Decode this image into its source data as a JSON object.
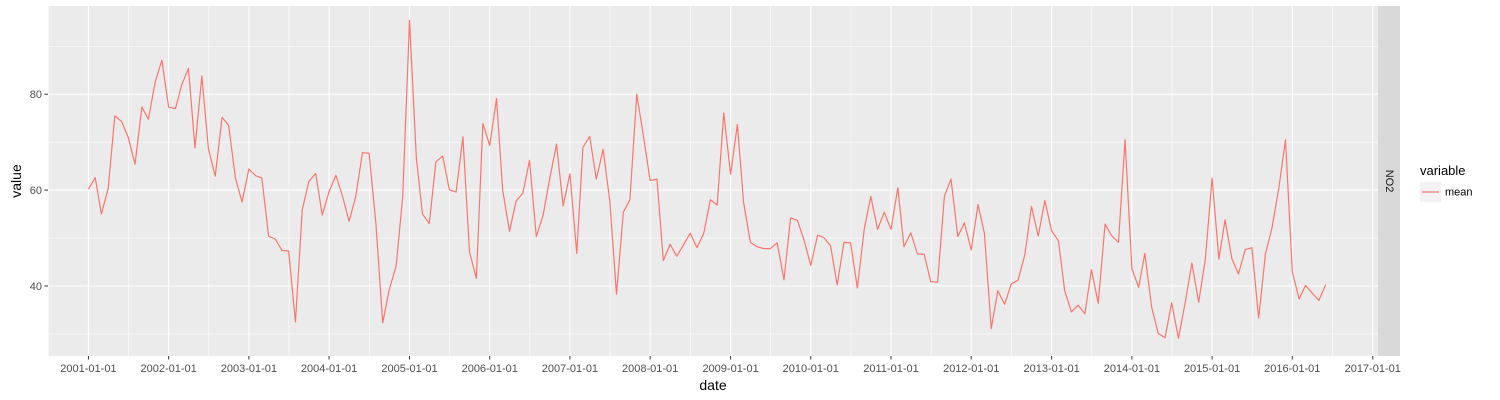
{
  "chart_data": {
    "type": "line",
    "xlabel": "date",
    "ylabel": "value",
    "facet_label": "NO2",
    "legend_title": "variable",
    "legend_position": "right",
    "grid": true,
    "xlim": [
      "2000-07-01",
      "2017-01-25"
    ],
    "ylim": [
      25.4,
      98.4
    ],
    "x_ticks": [
      "2001-01-01",
      "2002-01-01",
      "2003-01-01",
      "2004-01-01",
      "2005-01-01",
      "2006-01-01",
      "2007-01-01",
      "2008-01-01",
      "2009-01-01",
      "2010-01-01",
      "2011-01-01",
      "2012-01-01",
      "2013-01-01",
      "2014-01-01",
      "2015-01-01",
      "2016-01-01",
      "2017-01-01"
    ],
    "y_ticks": [
      40,
      60,
      80
    ],
    "series": [
      {
        "name": "mean",
        "color": "#F8766D",
        "start": "2001-01-01",
        "interval": "month",
        "values": [
          60.2,
          62.6,
          55.0,
          60.4,
          75.5,
          74.3,
          71.0,
          65.4,
          77.3,
          74.8,
          82.6,
          87.1,
          77.3,
          77.0,
          81.9,
          85.4,
          68.8,
          83.8,
          68.6,
          62.9,
          75.2,
          73.5,
          62.5,
          57.5,
          64.4,
          63.0,
          62.5,
          50.4,
          49.8,
          47.4,
          47.3,
          32.5,
          55.9,
          61.8,
          63.5,
          54.8,
          59.7,
          63.1,
          58.9,
          53.5,
          58.6,
          67.8,
          67.7,
          53.1,
          32.3,
          39.3,
          44.1,
          58.6,
          95.4,
          66.8,
          55.0,
          53.0,
          65.9,
          67.1,
          60.1,
          59.6,
          71.1,
          47.1,
          41.6,
          73.9,
          69.3,
          79.1,
          60.0,
          51.4,
          57.7,
          59.4,
          66.2,
          50.3,
          54.8,
          62.4,
          69.6,
          56.7,
          63.4,
          46.8,
          68.9,
          71.2,
          62.3,
          68.5,
          57.9,
          38.3,
          55.4,
          58.0,
          80.0,
          71.4,
          62.0,
          62.3,
          45.3,
          48.7,
          46.2,
          48.6,
          51.0,
          48.0,
          51.0,
          58.0,
          56.9,
          76.1,
          63.3,
          73.7,
          57.5,
          49.1,
          48.2,
          47.8,
          47.8,
          49.0,
          41.3,
          54.2,
          53.7,
          49.6,
          44.3,
          50.6,
          50.1,
          48.4,
          40.2,
          49.1,
          49.0,
          39.6,
          51.8,
          58.7,
          51.8,
          55.4,
          51.8,
          60.5,
          48.2,
          51.1,
          46.7,
          46.6,
          40.9,
          40.8,
          58.7,
          62.3,
          50.3,
          53.2,
          47.5,
          57.0,
          51.0,
          31.1,
          39.0,
          36.2,
          40.4,
          41.2,
          46.5,
          56.6,
          50.4,
          57.8,
          51.5,
          49.4,
          39.1,
          34.6,
          36.0,
          34.2,
          43.4,
          36.4,
          52.9,
          50.5,
          49.1,
          70.5,
          43.6,
          39.7,
          46.8,
          35.6,
          30.1,
          29.2,
          36.5,
          29.1,
          36.6,
          44.8,
          36.6,
          45.5,
          62.5,
          45.6,
          53.8,
          45.7,
          42.5,
          47.6,
          48.0,
          33.3,
          46.7,
          52.2,
          60.5,
          70.5,
          43.0,
          37.3,
          40.1,
          38.5,
          37.0,
          40.3
        ]
      }
    ]
  }
}
